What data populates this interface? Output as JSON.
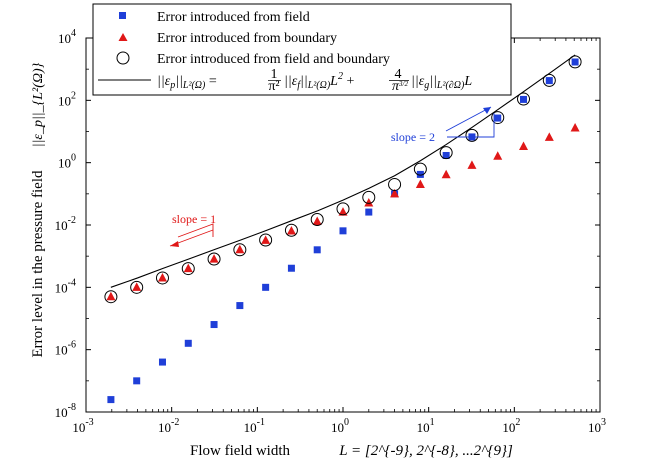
{
  "chart_data": {
    "type": "scatter",
    "title": "",
    "xscale": "log",
    "yscale": "log",
    "xlim": [
      0.001,
      1000
    ],
    "ylim": [
      1e-08,
      10000
    ],
    "grid": false,
    "legend_position": "top-left",
    "xlabel": {
      "prefix": "Flow field width",
      "math": "L = [2^{-9}, 2^{-8}, ...2^{9}]"
    },
    "ylabel": {
      "text": "Error level in the pressure field",
      "math": "||ε_p||_{L²(Ω)}"
    },
    "x_ticks": [
      {
        "value": 0.001,
        "base": "10",
        "exp": "-3"
      },
      {
        "value": 0.01,
        "base": "10",
        "exp": "-2"
      },
      {
        "value": 0.1,
        "base": "10",
        "exp": "-1"
      },
      {
        "value": 1,
        "base": "10",
        "exp": "0"
      },
      {
        "value": 10,
        "base": "10",
        "exp": "1"
      },
      {
        "value": 100,
        "base": "10",
        "exp": "2"
      },
      {
        "value": 1000,
        "base": "10",
        "exp": "3"
      }
    ],
    "y_ticks": [
      {
        "value": 1e-08,
        "base": "10",
        "exp": "-8"
      },
      {
        "value": 1e-06,
        "base": "10",
        "exp": "-6"
      },
      {
        "value": 0.0001,
        "base": "10",
        "exp": "-4"
      },
      {
        "value": 0.01,
        "base": "10",
        "exp": "-2"
      },
      {
        "value": 1,
        "base": "10",
        "exp": "0"
      },
      {
        "value": 100,
        "base": "10",
        "exp": "2"
      },
      {
        "value": 10000,
        "base": "10",
        "exp": "4"
      }
    ],
    "x": [
      0.001953125,
      0.00390625,
      0.0078125,
      0.015625,
      0.03125,
      0.0625,
      0.125,
      0.25,
      0.5,
      1,
      2,
      4,
      8,
      16,
      32,
      64,
      128,
      256,
      512
    ],
    "series": [
      {
        "name": "Error introduced from field",
        "marker": "square",
        "color": "#1f3fd8",
        "values": [
          2.5e-08,
          1e-07,
          4e-07,
          1.6e-06,
          6.4e-06,
          2.6e-05,
          0.0001,
          0.00041,
          0.0016,
          0.0065,
          0.026,
          0.1,
          0.42,
          1.7,
          6.7,
          27,
          107,
          430,
          1700
        ]
      },
      {
        "name": "Error introduced from boundary",
        "marker": "triangle",
        "color": "#e01818",
        "values": [
          5e-05,
          0.0001,
          0.0002,
          0.0004,
          0.0008,
          0.0016,
          0.0032,
          0.0064,
          0.013,
          0.026,
          0.051,
          0.1,
          0.2,
          0.41,
          0.82,
          1.6,
          3.3,
          6.5,
          13
        ]
      },
      {
        "name": "Error introduced from field and boundary",
        "marker": "circle",
        "color": "#000000",
        "values": [
          5e-05,
          0.0001,
          0.0002,
          0.0004,
          0.00081,
          0.0016,
          0.0033,
          0.0068,
          0.015,
          0.033,
          0.077,
          0.2,
          0.62,
          2.1,
          7.5,
          28,
          110,
          437,
          1713
        ]
      }
    ],
    "fit_line": {
      "name": "||ε_p||_{L²(Ω)} = (1/π²)||ε_f||_{L²(Ω)}L² + (4/π^{3/2})||ε_g||_{L²(∂Ω)}L",
      "color": "#000000",
      "x": [
        0.00195,
        0.004,
        0.008,
        0.016,
        0.032,
        0.064,
        0.128,
        0.256,
        0.512,
        1,
        2,
        4,
        8,
        16,
        32,
        64,
        128,
        256,
        512
      ],
      "values": [
        0.0001,
        0.0002,
        0.00041,
        0.00082,
        0.00165,
        0.0033,
        0.0067,
        0.014,
        0.029,
        0.063,
        0.15,
        0.38,
        1.15,
        3.8,
        13.5,
        50,
        190,
        730,
        2850
      ]
    },
    "legend": {
      "entries": [
        {
          "label": "Error introduced from field"
        },
        {
          "label": "Error introduced from boundary"
        },
        {
          "label": "Error introduced from field and boundary"
        },
        {
          "label_pre": "||ε",
          "label_sub1": "p",
          "label_mid1": "||",
          "label_sub2": "L²(Ω)",
          "label_eq": " = ",
          "frac1_num": "1",
          "frac1_den": "π²",
          "label_mid2": "||ε",
          "label_sub3": "f",
          "label_mid3": "||",
          "label_sub4": "L²(Ω)",
          "label_L2": "L",
          "label_sup": "2",
          "label_plus": " + ",
          "frac2_num": "4",
          "frac2_den": "π",
          "frac2_den_sup": "3/2",
          "label_mid4": "||ε",
          "label_sub5": "g",
          "label_mid5": "||",
          "label_sub6": "L²(∂Ω)",
          "label_end": "L"
        }
      ]
    },
    "annotations": [
      {
        "text": "slope = 2",
        "color": "#1f3fd8",
        "anchor_x": 8.5,
        "anchor_y": 40
      },
      {
        "text": "slope = 1",
        "color": "#e01818",
        "anchor_x": 0.025,
        "anchor_y": 0.005
      }
    ]
  }
}
